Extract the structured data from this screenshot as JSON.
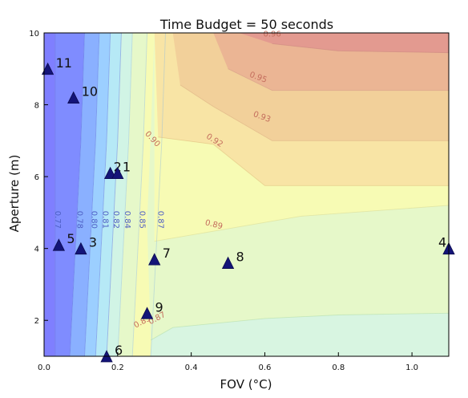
{
  "chart_data": {
    "type": "scatter",
    "title": "Time Budget = 50 seconds",
    "xlabel": "FOV (°C)",
    "ylabel": "Aperture (m)",
    "xlim": [
      0.0,
      1.1
    ],
    "ylim": [
      1.0,
      10.0
    ],
    "xticks": [
      0.0,
      0.2,
      0.4,
      0.6,
      0.8,
      1.0
    ],
    "yticks": [
      2,
      4,
      6,
      8,
      10
    ],
    "xtick_labels": [
      "0.0",
      "0.2",
      "0.4",
      "0.6",
      "0.8",
      "1.0"
    ],
    "ytick_labels": [
      "2",
      "4",
      "6",
      "8",
      "10"
    ],
    "grid": false,
    "legend": "none",
    "background_style": "filled contour",
    "contour_levels": [
      {
        "value": 0.77,
        "label": "0.77",
        "x": [
          0.03,
          0.03,
          0.03,
          0.03,
          0.03
        ]
      },
      {
        "value": 0.78,
        "label": "0.78",
        "x": [
          0.07,
          0.08,
          0.09,
          0.1,
          0.11
        ]
      },
      {
        "value": 0.8,
        "label": "0.80",
        "x": [
          0.11,
          0.12,
          0.13,
          0.14,
          0.15
        ]
      },
      {
        "value": 0.81,
        "label": "0.81",
        "x": [
          0.14,
          0.15,
          0.16,
          0.17,
          0.18
        ]
      },
      {
        "value": 0.82,
        "label": "0.82",
        "x": [
          0.17,
          0.18,
          0.19,
          0.2,
          0.21
        ]
      },
      {
        "value": 0.84,
        "label": "0.84",
        "x": [
          0.2,
          0.21,
          0.22,
          0.23,
          0.24
        ]
      },
      {
        "value": 0.85,
        "label": "0.85",
        "x": [
          0.24,
          0.25,
          0.26,
          0.27,
          0.28
        ]
      },
      {
        "value": 0.87,
        "label": "0.87",
        "x": [
          0.29,
          0.3,
          0.31,
          0.32,
          0.33
        ]
      }
    ],
    "contour_rows_y": [
      1.0,
      3.0,
      5.0,
      7.0,
      10.0
    ],
    "contour_label_y": 4.8,
    "region_labels": [
      {
        "text": "0.96",
        "x": 0.62,
        "y": 9.9
      },
      {
        "text": "0.95",
        "x": 0.58,
        "y": 8.7
      },
      {
        "text": "0.93",
        "x": 0.59,
        "y": 7.6
      },
      {
        "text": "0.92",
        "x": 0.46,
        "y": 6.95
      },
      {
        "text": "0.90",
        "x": 0.29,
        "y": 7.0
      },
      {
        "text": "0.89",
        "x": 0.46,
        "y": 4.6
      },
      {
        "text": "0.87",
        "x": 0.31,
        "y": 2.0
      },
      {
        "text": "0.85",
        "x": 0.27,
        "y": 1.9
      }
    ],
    "series": [
      {
        "x": [
          0.01,
          0.08,
          0.18,
          0.2,
          0.04,
          0.1,
          0.3,
          0.5,
          0.28,
          0.17,
          1.1
        ],
        "y": [
          9.0,
          8.2,
          6.1,
          6.1,
          4.1,
          4.0,
          3.7,
          3.6,
          2.2,
          1.0,
          4.0
        ],
        "labels": [
          "11",
          "10",
          "2",
          "1",
          "5",
          "3",
          "7",
          "8",
          "9",
          "6",
          "4"
        ]
      }
    ],
    "colors": {
      "point": "#141478",
      "frame": "#000000",
      "text": "#111111",
      "bands": [
        "#7f7fff",
        "#7f8cff",
        "#8ab0ff",
        "#9ccfff",
        "#b6e9f6",
        "#d1f4e5",
        "#e6f8c9",
        "#f7fbb4",
        "#f8e4a5",
        "#f2d09a",
        "#ebb594",
        "#e39a90"
      ]
    }
  }
}
